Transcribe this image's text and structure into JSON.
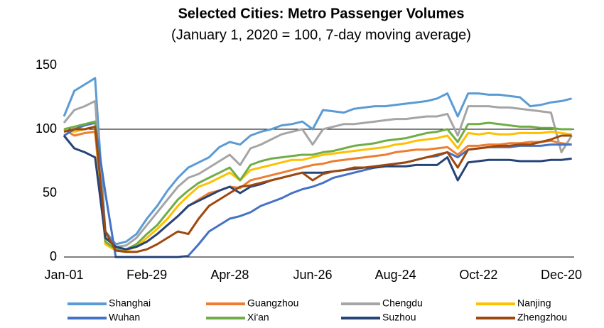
{
  "chart_data": {
    "type": "line",
    "title": "Selected Cities: Metro Passenger Volumes",
    "subtitle": "(January 1, 2020 = 100, 7-day moving average)",
    "x": [
      "Jan-01",
      "Jan-08",
      "Jan-15",
      "Jan-22",
      "Jan-29",
      "Feb-05",
      "Feb-13",
      "Feb-21",
      "Feb-29",
      "Mar-07",
      "Mar-14",
      "Mar-21",
      "Mar-28",
      "Apr-04",
      "Apr-12",
      "Apr-20",
      "Apr-28",
      "May-05",
      "May-12",
      "May-19",
      "May-26",
      "Jun-02",
      "Jun-10",
      "Jun-18",
      "Jun-26",
      "Jul-03",
      "Jul-10",
      "Jul-17",
      "Jul-24",
      "Jul-31",
      "Aug-08",
      "Aug-16",
      "Aug-24",
      "Aug-31",
      "Sep-07",
      "Sep-14",
      "Sep-21",
      "Sep-28",
      "Oct-06",
      "Oct-14",
      "Oct-22",
      "Oct-29",
      "Nov-05",
      "Nov-12",
      "Nov-19",
      "Nov-26",
      "Dec-04",
      "Dec-12",
      "Dec-20",
      "Dec-28"
    ],
    "xticks": [
      "Jan-01",
      "Feb-29",
      "Apr-28",
      "Jun-26",
      "Aug-24",
      "Oct-22",
      "Dec-20"
    ],
    "ylim": [
      0,
      150
    ],
    "yticks": [
      0,
      50,
      100,
      150
    ],
    "hline": 100,
    "series": [
      {
        "name": "Shanghai",
        "color": "#5b9bd5",
        "values": [
          110,
          130,
          135,
          140,
          20,
          10,
          12,
          18,
          30,
          40,
          52,
          62,
          70,
          74,
          78,
          86,
          90,
          88,
          95,
          98,
          100,
          103,
          104,
          106,
          100,
          115,
          114,
          113,
          116,
          117,
          118,
          118,
          119,
          120,
          121,
          122,
          124,
          128,
          110,
          128,
          128,
          127,
          127,
          126,
          125,
          118,
          119,
          121,
          122,
          124
        ]
      },
      {
        "name": "Guangzhou",
        "color": "#ed7d31",
        "values": [
          100,
          95,
          97,
          98,
          12,
          5,
          6,
          8,
          12,
          18,
          25,
          32,
          40,
          45,
          50,
          52,
          55,
          54,
          60,
          62,
          64,
          66,
          68,
          70,
          72,
          73,
          75,
          76,
          77,
          78,
          79,
          80,
          82,
          83,
          84,
          84,
          85,
          86,
          80,
          87,
          87,
          88,
          88,
          89,
          89,
          90,
          90,
          91,
          89,
          88
        ]
      },
      {
        "name": "Chengdu",
        "color": "#a5a5a5",
        "values": [
          105,
          115,
          118,
          122,
          15,
          8,
          9,
          15,
          25,
          35,
          45,
          55,
          62,
          65,
          70,
          75,
          80,
          72,
          85,
          88,
          92,
          96,
          98,
          100,
          88,
          100,
          102,
          104,
          104,
          105,
          106,
          107,
          108,
          108,
          109,
          110,
          110,
          112,
          95,
          118,
          118,
          118,
          117,
          117,
          116,
          115,
          114,
          113,
          82,
          95
        ]
      },
      {
        "name": "Nanjing",
        "color": "#ffc000",
        "values": [
          100,
          98,
          100,
          102,
          10,
          5,
          5,
          8,
          15,
          22,
          30,
          40,
          48,
          55,
          58,
          62,
          66,
          60,
          68,
          70,
          72,
          74,
          76,
          76,
          78,
          80,
          81,
          82,
          83,
          84,
          85,
          86,
          88,
          89,
          91,
          92,
          93,
          95,
          85,
          97,
          96,
          97,
          96,
          96,
          97,
          97,
          97,
          98,
          97,
          96
        ]
      },
      {
        "name": "Wuhan",
        "color": "#4472c4",
        "values": [
          95,
          100,
          103,
          105,
          50,
          0,
          0,
          0,
          0,
          0,
          0,
          0,
          1,
          10,
          20,
          25,
          30,
          32,
          35,
          40,
          43,
          46,
          50,
          53,
          55,
          58,
          62,
          64,
          66,
          68,
          70,
          71,
          73,
          74,
          76,
          78,
          79,
          82,
          78,
          84,
          85,
          86,
          86,
          86,
          87,
          87,
          87,
          88,
          88,
          88
        ]
      },
      {
        "name": "Xi'an",
        "color": "#70ad47",
        "values": [
          100,
          102,
          104,
          106,
          12,
          6,
          6,
          10,
          18,
          25,
          35,
          45,
          52,
          58,
          62,
          66,
          70,
          60,
          72,
          75,
          77,
          78,
          79,
          80,
          80,
          82,
          83,
          85,
          87,
          88,
          89,
          91,
          92,
          93,
          95,
          97,
          98,
          100,
          90,
          104,
          104,
          105,
          104,
          103,
          102,
          102,
          101,
          101,
          100,
          100
        ]
      },
      {
        "name": "Suzhou",
        "color": "#264478",
        "values": [
          95,
          85,
          82,
          78,
          15,
          8,
          6,
          8,
          12,
          18,
          25,
          32,
          40,
          44,
          48,
          52,
          55,
          50,
          55,
          57,
          60,
          62,
          64,
          66,
          66,
          66,
          67,
          68,
          69,
          70,
          70,
          71,
          71,
          71,
          72,
          72,
          72,
          78,
          60,
          74,
          75,
          76,
          76,
          76,
          75,
          75,
          75,
          76,
          76,
          77
        ]
      },
      {
        "name": "Zhengzhou",
        "color": "#9e480e",
        "values": [
          98,
          100,
          100,
          102,
          20,
          5,
          4,
          4,
          6,
          10,
          15,
          20,
          18,
          30,
          40,
          45,
          50,
          55,
          56,
          58,
          60,
          62,
          64,
          66,
          60,
          65,
          67,
          68,
          70,
          70,
          71,
          72,
          73,
          74,
          76,
          78,
          80,
          82,
          70,
          84,
          85,
          86,
          87,
          87,
          88,
          88,
          90,
          92,
          95,
          95
        ]
      }
    ]
  }
}
